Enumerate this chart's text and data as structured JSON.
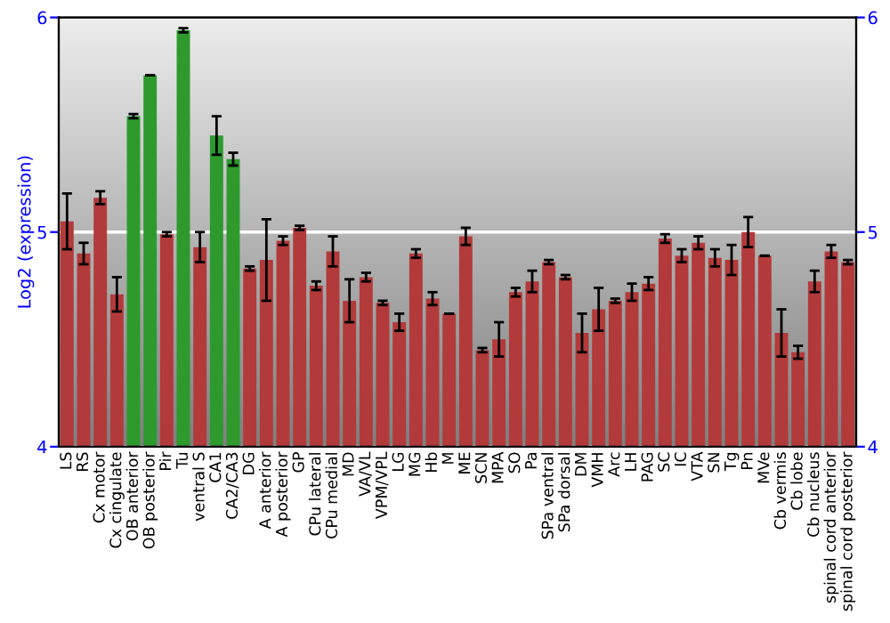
{
  "chart_data": {
    "type": "bar",
    "ylabel": "Log2 (expression)",
    "categories": [
      "LS",
      "RS",
      "Cx motor",
      "Cx cingulate",
      "OB anterior",
      "OB posterior",
      "Pir",
      "Tu",
      "ventral S",
      "CA1",
      "CA2/CA3",
      "DG",
      "A anterior",
      "A posterior",
      "GP",
      "CPu lateral",
      "CPu medial",
      "MD",
      "VA/VL",
      "VPM/VPL",
      "LG",
      "MG",
      "Hb",
      "M",
      "ME",
      "SCN",
      "MPA",
      "SO",
      "Pa",
      "SPa ventral",
      "SPa dorsal",
      "DM",
      "VMH",
      "Arc",
      "LH",
      "PAG",
      "SC",
      "IC",
      "VTA",
      "SN",
      "Tg",
      "Pn",
      "MVe",
      "Cb vermis",
      "Cb lobe",
      "Cb nucleus",
      "spinal cord anterior",
      "spinal cord posterior"
    ],
    "values": [
      5.05,
      4.9,
      5.16,
      4.71,
      5.54,
      5.73,
      4.99,
      5.94,
      4.93,
      5.45,
      5.34,
      4.83,
      4.87,
      4.96,
      5.02,
      4.75,
      4.91,
      4.68,
      4.79,
      4.67,
      4.58,
      4.9,
      4.69,
      4.62,
      4.98,
      4.45,
      4.5,
      4.72,
      4.77,
      4.86,
      4.79,
      4.53,
      4.64,
      4.68,
      4.72,
      4.76,
      4.97,
      4.89,
      4.95,
      4.88,
      4.87,
      5.0,
      4.89,
      4.53,
      4.44,
      4.77,
      4.91,
      4.86
    ],
    "errors": [
      0.13,
      0.05,
      0.03,
      0.08,
      0.01,
      null,
      0.01,
      0.01,
      0.07,
      0.09,
      0.03,
      0.01,
      0.19,
      0.02,
      0.01,
      0.02,
      0.07,
      0.1,
      0.02,
      0.01,
      0.04,
      0.02,
      0.03,
      null,
      0.04,
      0.01,
      0.08,
      0.02,
      0.05,
      0.01,
      0.01,
      0.09,
      0.1,
      0.01,
      0.04,
      0.03,
      0.02,
      0.03,
      0.03,
      0.04,
      0.07,
      0.07,
      null,
      0.11,
      0.03,
      0.05,
      0.03,
      0.01
    ],
    "colors": [
      "#b33a3a",
      "#b33a3a",
      "#b33a3a",
      "#b33a3a",
      "#2e9a2e",
      "#2e9a2e",
      "#b33a3a",
      "#2e9a2e",
      "#b33a3a",
      "#2e9a2e",
      "#2e9a2e",
      "#b33a3a",
      "#b33a3a",
      "#b33a3a",
      "#b33a3a",
      "#b33a3a",
      "#b33a3a",
      "#b33a3a",
      "#b33a3a",
      "#b33a3a",
      "#b33a3a",
      "#b33a3a",
      "#b33a3a",
      "#b33a3a",
      "#b33a3a",
      "#b33a3a",
      "#b33a3a",
      "#b33a3a",
      "#b33a3a",
      "#b33a3a",
      "#b33a3a",
      "#b33a3a",
      "#b33a3a",
      "#b33a3a",
      "#b33a3a",
      "#b33a3a",
      "#b33a3a",
      "#b33a3a",
      "#b33a3a",
      "#b33a3a",
      "#b33a3a",
      "#b33a3a",
      "#b33a3a",
      "#b33a3a",
      "#b33a3a",
      "#b33a3a",
      "#b33a3a",
      "#b33a3a"
    ],
    "ylim": [
      4,
      6
    ],
    "yticks": [
      4,
      5,
      6
    ],
    "y2lim": [
      4,
      6
    ],
    "y2ticks": [
      4,
      5,
      6
    ],
    "grid": "y"
  }
}
